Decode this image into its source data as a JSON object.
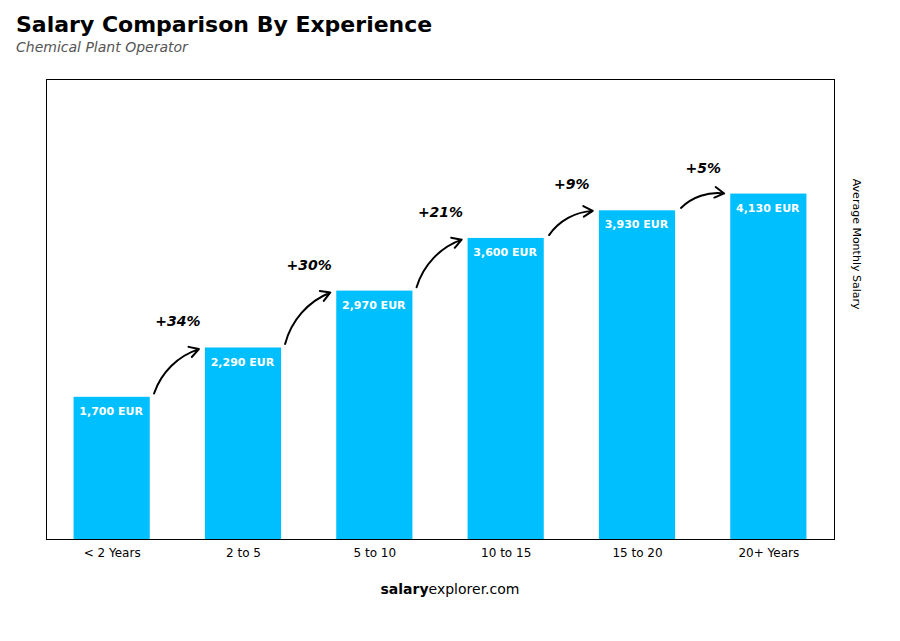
{
  "chart_data": {
    "type": "bar",
    "title": "Salary Comparison By Experience",
    "subtitle": "Chemical Plant Operator",
    "categories": [
      "< 2 Years",
      "2 to 5",
      "5 to 10",
      "10 to 15",
      "15 to 20",
      "20+ Years"
    ],
    "values": [
      1700,
      2290,
      2970,
      3600,
      3930,
      4130
    ],
    "value_labels": [
      "1,700 EUR",
      "2,290 EUR",
      "2,970 EUR",
      "3,600 EUR",
      "3,930 EUR",
      "4,130 EUR"
    ],
    "data_labels": true,
    "annotations": [
      "+34%",
      "+30%",
      "+21%",
      "+9%",
      "+5%"
    ],
    "ylabel": "Average Monthly Salary",
    "footer": [
      "salary",
      "explorer.com"
    ],
    "color": "#00BFFF",
    "ylim": [
      0,
      5500
    ],
    "tick_labels": "x"
  }
}
